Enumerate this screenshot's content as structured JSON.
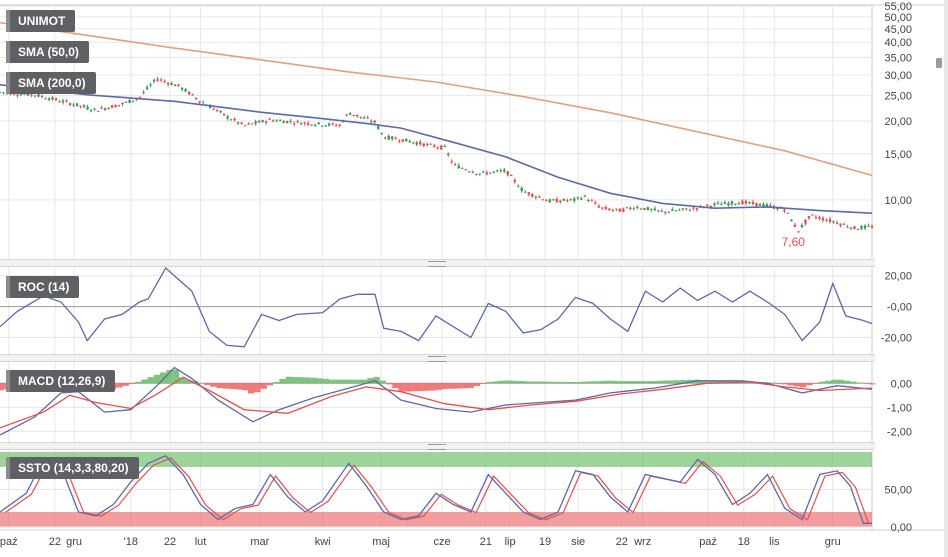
{
  "chart_data": [
    {
      "type": "candlestick",
      "scale": "log",
      "ylim": [
        6,
        55
      ],
      "yticks": [
        "55,00",
        "50,00",
        "45,00",
        "40,00",
        "35,00",
        "30,00",
        "25,00",
        "20,00",
        "15,00",
        "10,00"
      ],
      "ytick_values": [
        55,
        50,
        45,
        40,
        35,
        30,
        25,
        20,
        15,
        10
      ],
      "legend": [
        "UNIMOT",
        "SMA (50,0)",
        "SMA (200,0)"
      ],
      "annotation": {
        "text": "7,60",
        "value": 7.6,
        "x": 0.912
      },
      "price_path": [
        [
          0,
          25.8
        ],
        [
          0.04,
          25.2
        ],
        [
          0.08,
          23.4
        ],
        [
          0.11,
          22.0
        ],
        [
          0.14,
          23.2
        ],
        [
          0.16,
          24.6
        ],
        [
          0.18,
          29.0
        ],
        [
          0.205,
          27.2
        ],
        [
          0.23,
          23.8
        ],
        [
          0.26,
          20.8
        ],
        [
          0.28,
          19.2
        ],
        [
          0.31,
          20.2
        ],
        [
          0.34,
          19.8
        ],
        [
          0.37,
          19.4
        ],
        [
          0.39,
          19.3
        ],
        [
          0.4,
          21.5
        ],
        [
          0.43,
          19.8
        ],
        [
          0.44,
          17.4
        ],
        [
          0.46,
          17.0
        ],
        [
          0.49,
          16.2
        ],
        [
          0.51,
          15.8
        ],
        [
          0.52,
          13.6
        ],
        [
          0.55,
          12.6
        ],
        [
          0.58,
          12.9
        ],
        [
          0.6,
          10.8
        ],
        [
          0.63,
          9.9
        ],
        [
          0.66,
          10.0
        ],
        [
          0.67,
          10.3
        ],
        [
          0.69,
          9.3
        ],
        [
          0.71,
          9.1
        ],
        [
          0.73,
          9.4
        ],
        [
          0.76,
          9.0
        ],
        [
          0.79,
          9.2
        ],
        [
          0.82,
          9.6
        ],
        [
          0.85,
          9.8
        ],
        [
          0.88,
          9.5
        ],
        [
          0.9,
          9.2
        ],
        [
          0.915,
          7.6
        ],
        [
          0.93,
          8.7
        ],
        [
          0.96,
          8.2
        ],
        [
          0.98,
          7.8
        ],
        [
          1.0,
          7.9
        ]
      ],
      "series": [
        {
          "name": "SMA (50,0)",
          "color": "#5b6aa8",
          "values": [
            [
              0,
              27.5
            ],
            [
              0.1,
              25.2
            ],
            [
              0.2,
              23.8
            ],
            [
              0.3,
              21.6
            ],
            [
              0.36,
              20.6
            ],
            [
              0.42,
              19.6
            ],
            [
              0.46,
              18.8
            ],
            [
              0.52,
              16.6
            ],
            [
              0.58,
              14.6
            ],
            [
              0.64,
              12.2
            ],
            [
              0.7,
              10.6
            ],
            [
              0.76,
              9.7
            ],
            [
              0.82,
              9.3
            ],
            [
              0.88,
              9.4
            ],
            [
              0.94,
              9.1
            ],
            [
              1.0,
              8.9
            ]
          ]
        },
        {
          "name": "SMA (200,0)",
          "color": "#e3a07a",
          "values": [
            [
              0,
              47.5
            ],
            [
              0.2,
              38.0
            ],
            [
              0.4,
              30.8
            ],
            [
              0.5,
              28.2
            ],
            [
              0.6,
              24.8
            ],
            [
              0.7,
              21.5
            ],
            [
              0.8,
              18.2
            ],
            [
              0.9,
              15.4
            ],
            [
              1.0,
              12.4
            ]
          ]
        }
      ]
    },
    {
      "type": "line",
      "legend": [
        "ROC (14)"
      ],
      "ylim": [
        -30,
        25
      ],
      "yticks": [
        "20,00",
        "-0,00",
        "-20,00"
      ],
      "ytick_values": [
        20,
        0,
        -20
      ],
      "series": [
        {
          "name": "ROC (14)",
          "color": "#5b6aa8",
          "values": [
            [
              0,
              -13
            ],
            [
              0.02,
              -3
            ],
            [
              0.05,
              7
            ],
            [
              0.07,
              3
            ],
            [
              0.09,
              -10
            ],
            [
              0.1,
              -22
            ],
            [
              0.12,
              -8
            ],
            [
              0.14,
              -5
            ],
            [
              0.16,
              3
            ],
            [
              0.17,
              5
            ],
            [
              0.19,
              25
            ],
            [
              0.21,
              15
            ],
            [
              0.22,
              10
            ],
            [
              0.24,
              -16
            ],
            [
              0.26,
              -25
            ],
            [
              0.28,
              -26
            ],
            [
              0.3,
              -5
            ],
            [
              0.32,
              -9
            ],
            [
              0.34,
              -5
            ],
            [
              0.37,
              -4
            ],
            [
              0.39,
              5
            ],
            [
              0.41,
              8
            ],
            [
              0.43,
              8
            ],
            [
              0.44,
              -14
            ],
            [
              0.46,
              -16
            ],
            [
              0.48,
              -22
            ],
            [
              0.5,
              -6
            ],
            [
              0.52,
              -13
            ],
            [
              0.54,
              -20
            ],
            [
              0.56,
              2
            ],
            [
              0.58,
              -3
            ],
            [
              0.6,
              -17
            ],
            [
              0.62,
              -15
            ],
            [
              0.64,
              -8
            ],
            [
              0.66,
              6
            ],
            [
              0.68,
              2
            ],
            [
              0.7,
              -8
            ],
            [
              0.72,
              -16
            ],
            [
              0.74,
              10
            ],
            [
              0.76,
              3
            ],
            [
              0.78,
              12
            ],
            [
              0.8,
              4
            ],
            [
              0.82,
              10
            ],
            [
              0.84,
              3
            ],
            [
              0.86,
              10
            ],
            [
              0.88,
              3
            ],
            [
              0.9,
              -5
            ],
            [
              0.92,
              -22
            ],
            [
              0.94,
              -10
            ],
            [
              0.955,
              15
            ],
            [
              0.97,
              -6
            ],
            [
              0.99,
              -9
            ],
            [
              1.0,
              -11
            ]
          ]
        }
      ]
    },
    {
      "type": "line",
      "legend": [
        "MACD (12,26,9)"
      ],
      "ylim": [
        -2.4,
        0.8
      ],
      "yticks": [
        "0,00",
        "-1,00",
        "-2,00"
      ],
      "ytick_values": [
        0,
        -1,
        -2
      ],
      "series": [
        {
          "name": "MACD",
          "color": "#5b6aa8",
          "values": [
            [
              0,
              -2.15
            ],
            [
              0.04,
              -1.4
            ],
            [
              0.07,
              -0.4
            ],
            [
              0.09,
              -0.35
            ],
            [
              0.12,
              -1.2
            ],
            [
              0.15,
              -1.1
            ],
            [
              0.18,
              -0.1
            ],
            [
              0.2,
              0.65
            ],
            [
              0.22,
              0.2
            ],
            [
              0.25,
              -0.7
            ],
            [
              0.29,
              -1.6
            ],
            [
              0.32,
              -1.1
            ],
            [
              0.36,
              -0.6
            ],
            [
              0.4,
              -0.2
            ],
            [
              0.43,
              0.1
            ],
            [
              0.46,
              -0.7
            ],
            [
              0.5,
              -1.05
            ],
            [
              0.54,
              -1.2
            ],
            [
              0.58,
              -0.9
            ],
            [
              0.62,
              -0.8
            ],
            [
              0.66,
              -0.7
            ],
            [
              0.7,
              -0.4
            ],
            [
              0.75,
              -0.2
            ],
            [
              0.8,
              0.1
            ],
            [
              0.85,
              0.1
            ],
            [
              0.88,
              0.0
            ],
            [
              0.92,
              -0.4
            ],
            [
              0.96,
              -0.1
            ],
            [
              1.0,
              -0.25
            ]
          ]
        },
        {
          "name": "Signal",
          "color": "#e4504f",
          "values": [
            [
              0,
              -1.85
            ],
            [
              0.05,
              -1.2
            ],
            [
              0.08,
              -0.5
            ],
            [
              0.11,
              -0.8
            ],
            [
              0.15,
              -1.05
            ],
            [
              0.18,
              -0.45
            ],
            [
              0.21,
              0.25
            ],
            [
              0.24,
              -0.3
            ],
            [
              0.28,
              -1.1
            ],
            [
              0.33,
              -1.25
            ],
            [
              0.38,
              -0.55
            ],
            [
              0.42,
              -0.15
            ],
            [
              0.46,
              -0.35
            ],
            [
              0.51,
              -0.85
            ],
            [
              0.56,
              -1.1
            ],
            [
              0.61,
              -0.9
            ],
            [
              0.66,
              -0.75
            ],
            [
              0.71,
              -0.45
            ],
            [
              0.76,
              -0.25
            ],
            [
              0.81,
              0.0
            ],
            [
              0.86,
              0.05
            ],
            [
              0.9,
              -0.15
            ],
            [
              0.94,
              -0.3
            ],
            [
              1.0,
              -0.2
            ]
          ]
        }
      ]
    },
    {
      "type": "line",
      "legend": [
        "SSTO (14,3,3,80,20)"
      ],
      "ylim": [
        0,
        100
      ],
      "bands": [
        {
          "from": 80,
          "to": 100,
          "color": "#7dc57a"
        },
        {
          "from": 0,
          "to": 20,
          "color": "#ee7d7d"
        }
      ],
      "yticks": [
        "50,00",
        "0,00"
      ],
      "ytick_values": [
        50,
        0
      ],
      "series": [
        {
          "name": "SSTO",
          "color": "#5b6aa8",
          "values": [
            [
              0,
              20
            ],
            [
              0.03,
              45
            ],
            [
              0.05,
              90
            ],
            [
              0.07,
              80
            ],
            [
              0.09,
              20
            ],
            [
              0.11,
              15
            ],
            [
              0.13,
              30
            ],
            [
              0.15,
              60
            ],
            [
              0.17,
              85
            ],
            [
              0.19,
              95
            ],
            [
              0.21,
              70
            ],
            [
              0.23,
              30
            ],
            [
              0.25,
              10
            ],
            [
              0.27,
              25
            ],
            [
              0.29,
              30
            ],
            [
              0.31,
              70
            ],
            [
              0.33,
              40
            ],
            [
              0.35,
              20
            ],
            [
              0.37,
              35
            ],
            [
              0.4,
              85
            ],
            [
              0.42,
              55
            ],
            [
              0.44,
              20
            ],
            [
              0.46,
              10
            ],
            [
              0.48,
              15
            ],
            [
              0.5,
              45
            ],
            [
              0.52,
              30
            ],
            [
              0.54,
              20
            ],
            [
              0.56,
              70
            ],
            [
              0.58,
              45
            ],
            [
              0.6,
              20
            ],
            [
              0.62,
              10
            ],
            [
              0.64,
              20
            ],
            [
              0.66,
              75
            ],
            [
              0.68,
              70
            ],
            [
              0.7,
              40
            ],
            [
              0.72,
              20
            ],
            [
              0.74,
              70
            ],
            [
              0.76,
              65
            ],
            [
              0.78,
              60
            ],
            [
              0.8,
              90
            ],
            [
              0.82,
              70
            ],
            [
              0.84,
              30
            ],
            [
              0.86,
              45
            ],
            [
              0.88,
              70
            ],
            [
              0.9,
              25
            ],
            [
              0.92,
              10
            ],
            [
              0.94,
              70
            ],
            [
              0.96,
              75
            ],
            [
              0.975,
              55
            ],
            [
              0.99,
              5
            ],
            [
              1.0,
              5
            ]
          ]
        }
      ]
    }
  ],
  "x_axis_labels": [
    "paź",
    "22",
    "gru",
    "'18",
    "22",
    "lut",
    "mar",
    "kwi",
    "maj",
    "cze",
    "21",
    "lip",
    "19",
    "sie",
    "22",
    "wrz",
    "paź",
    "18",
    "lis",
    "gru"
  ],
  "x_axis_positions": [
    0.01,
    0.063,
    0.085,
    0.15,
    0.195,
    0.23,
    0.298,
    0.37,
    0.437,
    0.507,
    0.557,
    0.585,
    0.625,
    0.663,
    0.713,
    0.737,
    0.812,
    0.853,
    0.888,
    0.955
  ],
  "colors": {
    "up": "#3c9a5a",
    "down": "#e4504f",
    "grid": "#e6e6e6",
    "zero": "#9a9a9a"
  }
}
